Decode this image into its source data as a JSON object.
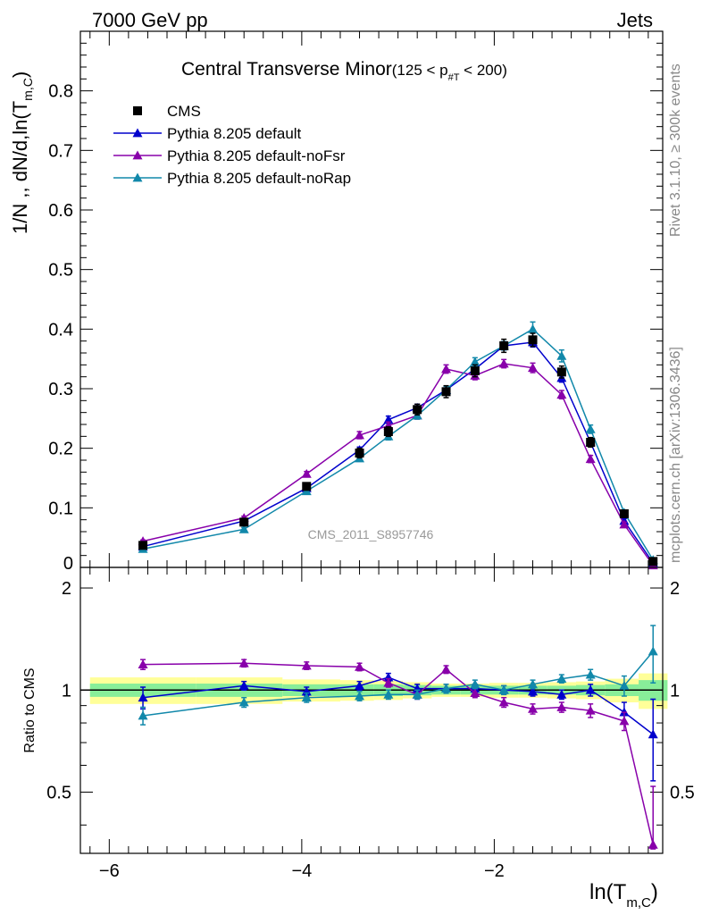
{
  "header": {
    "left": "7000 GeV pp",
    "right": "Jets"
  },
  "side_labels": {
    "rivet": "Rivet 3.1.10, ≥ 300k events",
    "mcplots": "mcplots.cern.ch [arXiv:1306.3436]"
  },
  "chart_data": [
    {
      "type": "scatter",
      "title_main": "Central Transverse Minor",
      "title_cut_pre": "(125 < p",
      "title_cut_sub": "#T",
      "title_cut_post": "  < 200)",
      "ylabel_pre": "1/N",
      "ylabel_mid": " ,, dN/d,ln(T",
      "ylabel_sub": "m,C",
      "ylabel_post": ")",
      "watermark": "CMS_2011_S8957746",
      "xlim": [
        -6.3,
        -0.25
      ],
      "ylim": [
        0,
        0.9
      ],
      "yticks": [
        {
          "v": 0.1,
          "label": "0.1"
        },
        {
          "v": 0.2,
          "label": "0.2"
        },
        {
          "v": 0.3,
          "label": "0.3"
        },
        {
          "v": 0.4,
          "label": "0.4"
        },
        {
          "v": 0.5,
          "label": "0.5"
        },
        {
          "v": 0.6,
          "label": "0.6"
        },
        {
          "v": 0.7,
          "label": "0.7"
        },
        {
          "v": 0.8,
          "label": "0.8"
        },
        {
          "v": 0.0,
          "label": "0"
        }
      ],
      "x": [
        -5.65,
        -4.6,
        -3.95,
        -3.4,
        -3.1,
        -2.8,
        -2.5,
        -2.2,
        -1.9,
        -1.6,
        -1.3,
        -1.0,
        -0.65,
        -0.35
      ],
      "series": [
        {
          "name": "CMS",
          "marker": "square",
          "color": "#000000",
          "values": [
            0.037,
            0.076,
            0.136,
            0.192,
            0.228,
            0.265,
            0.295,
            0.33,
            0.372,
            0.382,
            0.328,
            0.21,
            0.09,
            0.01
          ],
          "errors": [
            0.004,
            0.005,
            0.006,
            0.008,
            0.008,
            0.009,
            0.01,
            0.01,
            0.011,
            0.011,
            0.01,
            0.008,
            0.006,
            0.002
          ]
        },
        {
          "name": "Pythia 8.205 default",
          "marker": "triangle",
          "color": "#0000cc",
          "values": [
            0.035,
            0.078,
            0.133,
            0.197,
            0.248,
            0.268,
            0.298,
            0.333,
            0.372,
            0.378,
            0.318,
            0.21,
            0.078,
            0.0075
          ],
          "errors": [
            0.002,
            0.003,
            0.004,
            0.005,
            0.006,
            0.006,
            0.006,
            0.007,
            0.007,
            0.008,
            0.007,
            0.006,
            0.004,
            0.002
          ]
        },
        {
          "name": "Pythia 8.205 default-noFsr",
          "marker": "triangle",
          "color": "#8800aa",
          "values": [
            0.044,
            0.083,
            0.157,
            0.222,
            0.238,
            0.255,
            0.333,
            0.322,
            0.342,
            0.335,
            0.29,
            0.182,
            0.072,
            0.0035
          ],
          "errors": [
            0.002,
            0.003,
            0.004,
            0.006,
            0.006,
            0.006,
            0.007,
            0.007,
            0.007,
            0.008,
            0.007,
            0.006,
            0.004,
            0.001
          ]
        },
        {
          "name": "Pythia 8.205 default-noRap",
          "marker": "triangle",
          "color": "#1188aa",
          "values": [
            0.031,
            0.064,
            0.128,
            0.183,
            0.22,
            0.255,
            0.298,
            0.345,
            0.372,
            0.4,
            0.355,
            0.232,
            0.092,
            0.0125
          ],
          "errors": [
            0.002,
            0.003,
            0.004,
            0.005,
            0.006,
            0.006,
            0.006,
            0.007,
            0.007,
            0.012,
            0.01,
            0.007,
            0.004,
            0.002
          ]
        }
      ]
    },
    {
      "type": "scatter",
      "ylabel": "Ratio to CMS",
      "xlabel_pre": "ln(T",
      "xlabel_sub": "m,C",
      "xlabel_post": ")",
      "xlim": [
        -6.3,
        -0.25
      ],
      "ylim": [
        0.33,
        2.3
      ],
      "xticks": [
        {
          "v": -6,
          "label": "−6"
        },
        {
          "v": -4,
          "label": "−4"
        },
        {
          "v": -2,
          "label": "−2"
        }
      ],
      "yticks": [
        {
          "v": 0.5,
          "label": "0.5"
        },
        {
          "v": 1,
          "label": "1"
        },
        {
          "v": 2,
          "label": "2"
        }
      ],
      "band_edges": [
        -6.2,
        -5.1,
        -4.2,
        -3.6,
        -3.25,
        -2.95,
        -2.65,
        -2.35,
        -2.05,
        -1.75,
        -1.45,
        -1.15,
        -0.85,
        -0.5,
        -0.2
      ],
      "band_inner": [
        0.045,
        0.045,
        0.04,
        0.04,
        0.04,
        0.035,
        0.03,
        0.03,
        0.03,
        0.03,
        0.03,
        0.035,
        0.04,
        0.07
      ],
      "band_outer": [
        0.09,
        0.09,
        0.075,
        0.07,
        0.065,
        0.055,
        0.045,
        0.045,
        0.05,
        0.05,
        0.055,
        0.06,
        0.08,
        0.12
      ],
      "series": [
        {
          "name": "Pythia 8.205 default",
          "color": "#0000cc",
          "values": [
            0.95,
            1.03,
            0.99,
            1.03,
            1.09,
            1.01,
            1.01,
            1.01,
            1.0,
            0.99,
            0.97,
            1.0,
            0.86,
            0.74
          ],
          "errors": [
            0.07,
            0.03,
            0.03,
            0.03,
            0.03,
            0.03,
            0.03,
            0.03,
            0.03,
            0.03,
            0.03,
            0.04,
            0.06,
            0.2
          ]
        },
        {
          "name": "Pythia 8.205 default-noFsr",
          "color": "#8800aa",
          "values": [
            1.19,
            1.2,
            1.18,
            1.17,
            1.05,
            0.97,
            1.15,
            0.98,
            0.92,
            0.88,
            0.89,
            0.87,
            0.81,
            0.35
          ],
          "errors": [
            0.04,
            0.03,
            0.03,
            0.03,
            0.03,
            0.03,
            0.03,
            0.03,
            0.03,
            0.03,
            0.03,
            0.04,
            0.05,
            0.17
          ]
        },
        {
          "name": "Pythia 8.205 default-noRap",
          "color": "#1188aa",
          "values": [
            0.84,
            0.92,
            0.95,
            0.96,
            0.97,
            0.97,
            1.01,
            1.04,
            1.0,
            1.04,
            1.08,
            1.11,
            1.03,
            1.3
          ],
          "errors": [
            0.05,
            0.03,
            0.03,
            0.03,
            0.03,
            0.03,
            0.03,
            0.03,
            0.03,
            0.03,
            0.03,
            0.04,
            0.07,
            0.25
          ]
        }
      ]
    }
  ]
}
